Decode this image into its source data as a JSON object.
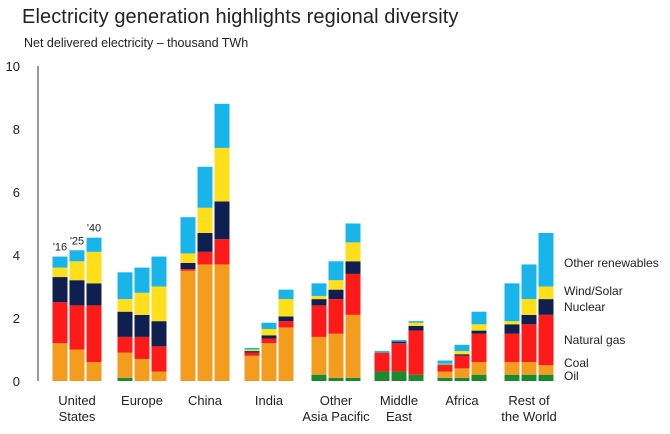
{
  "chart_data": {
    "type": "bar",
    "title": "Electricity generation highlights regional diversity",
    "subtitle": "Net delivered electricity – thousand TWh",
    "ylim": [
      0,
      10
    ],
    "yticks": [
      0,
      2,
      4,
      6,
      8,
      10
    ],
    "grid": false,
    "legend_placement": "right",
    "bar_year_labels": [
      "'16",
      "'25",
      "'40"
    ],
    "groups": [
      {
        "label": [
          "United",
          "States"
        ],
        "bars": [
          {
            "year": "2016",
            "values": {
              "Oil": 0.0,
              "Coal": 1.2,
              "Natural gas": 1.3,
              "Nuclear": 0.8,
              "Wind/Solar": 0.3,
              "Other renewables": 0.35
            }
          },
          {
            "year": "2025",
            "values": {
              "Oil": 0.0,
              "Coal": 1.0,
              "Natural gas": 1.4,
              "Nuclear": 0.8,
              "Wind/Solar": 0.6,
              "Other renewables": 0.35
            }
          },
          {
            "year": "2040",
            "values": {
              "Oil": 0.0,
              "Coal": 0.6,
              "Natural gas": 1.8,
              "Nuclear": 0.7,
              "Wind/Solar": 1.0,
              "Other renewables": 0.45
            }
          }
        ]
      },
      {
        "label": [
          "Europe"
        ],
        "bars": [
          {
            "year": "2016",
            "values": {
              "Oil": 0.1,
              "Coal": 0.8,
              "Natural gas": 0.5,
              "Nuclear": 0.8,
              "Wind/Solar": 0.4,
              "Other renewables": 0.85
            }
          },
          {
            "year": "2025",
            "values": {
              "Oil": 0.0,
              "Coal": 0.7,
              "Natural gas": 0.7,
              "Nuclear": 0.7,
              "Wind/Solar": 0.7,
              "Other renewables": 0.8
            }
          },
          {
            "year": "2040",
            "values": {
              "Oil": 0.0,
              "Coal": 0.3,
              "Natural gas": 0.8,
              "Nuclear": 0.8,
              "Wind/Solar": 1.1,
              "Other renewables": 0.95
            }
          }
        ]
      },
      {
        "label": [
          "China"
        ],
        "bars": [
          {
            "year": "2016",
            "values": {
              "Oil": 0.0,
              "Coal": 3.5,
              "Natural gas": 0.05,
              "Nuclear": 0.2,
              "Wind/Solar": 0.3,
              "Other renewables": 1.15
            }
          },
          {
            "year": "2025",
            "values": {
              "Oil": 0.0,
              "Coal": 3.7,
              "Natural gas": 0.4,
              "Nuclear": 0.6,
              "Wind/Solar": 0.8,
              "Other renewables": 1.3
            }
          },
          {
            "year": "2040",
            "values": {
              "Oil": 0.0,
              "Coal": 3.7,
              "Natural gas": 0.8,
              "Nuclear": 1.2,
              "Wind/Solar": 1.7,
              "Other renewables": 1.4
            }
          }
        ]
      },
      {
        "label": [
          "India"
        ],
        "bars": [
          {
            "year": "2016",
            "values": {
              "Oil": 0.0,
              "Coal": 0.8,
              "Natural gas": 0.1,
              "Nuclear": 0.05,
              "Wind/Solar": 0.05,
              "Other renewables": 0.05
            }
          },
          {
            "year": "2025",
            "values": {
              "Oil": 0.0,
              "Coal": 1.2,
              "Natural gas": 0.15,
              "Nuclear": 0.1,
              "Wind/Solar": 0.2,
              "Other renewables": 0.2
            }
          },
          {
            "year": "2040",
            "values": {
              "Oil": 0.0,
              "Coal": 1.7,
              "Natural gas": 0.2,
              "Nuclear": 0.15,
              "Wind/Solar": 0.55,
              "Other renewables": 0.3
            }
          }
        ]
      },
      {
        "label": [
          "Other",
          "Asia Pacific"
        ],
        "bars": [
          {
            "year": "2016",
            "values": {
              "Oil": 0.2,
              "Coal": 1.2,
              "Natural gas": 1.0,
              "Nuclear": 0.2,
              "Wind/Solar": 0.1,
              "Other renewables": 0.4
            }
          },
          {
            "year": "2025",
            "values": {
              "Oil": 0.1,
              "Coal": 1.4,
              "Natural gas": 1.1,
              "Nuclear": 0.3,
              "Wind/Solar": 0.3,
              "Other renewables": 0.6
            }
          },
          {
            "year": "2040",
            "values": {
              "Oil": 0.1,
              "Coal": 2.0,
              "Natural gas": 1.3,
              "Nuclear": 0.4,
              "Wind/Solar": 0.6,
              "Other renewables": 0.6
            }
          }
        ]
      },
      {
        "label": [
          "Middle",
          "East"
        ],
        "bars": [
          {
            "year": "2016",
            "values": {
              "Oil": 0.3,
              "Coal": 0.0,
              "Natural gas": 0.6,
              "Nuclear": 0.0,
              "Wind/Solar": 0.0,
              "Other renewables": 0.05
            }
          },
          {
            "year": "2025",
            "values": {
              "Oil": 0.3,
              "Coal": 0.0,
              "Natural gas": 0.9,
              "Nuclear": 0.05,
              "Wind/Solar": 0.0,
              "Other renewables": 0.05
            }
          },
          {
            "year": "2040",
            "values": {
              "Oil": 0.2,
              "Coal": 0.0,
              "Natural gas": 1.4,
              "Nuclear": 0.15,
              "Wind/Solar": 0.1,
              "Other renewables": 0.05
            }
          }
        ]
      },
      {
        "label": [
          "Africa"
        ],
        "bars": [
          {
            "year": "2016",
            "values": {
              "Oil": 0.1,
              "Coal": 0.2,
              "Natural gas": 0.2,
              "Nuclear": 0.02,
              "Wind/Solar": 0.03,
              "Other renewables": 0.1
            }
          },
          {
            "year": "2025",
            "values": {
              "Oil": 0.1,
              "Coal": 0.3,
              "Natural gas": 0.4,
              "Nuclear": 0.05,
              "Wind/Solar": 0.1,
              "Other renewables": 0.2
            }
          },
          {
            "year": "2040",
            "values": {
              "Oil": 0.2,
              "Coal": 0.4,
              "Natural gas": 0.9,
              "Nuclear": 0.1,
              "Wind/Solar": 0.2,
              "Other renewables": 0.4
            }
          }
        ]
      },
      {
        "label": [
          "Rest of",
          "the World"
        ],
        "bars": [
          {
            "year": "2016",
            "values": {
              "Oil": 0.2,
              "Coal": 0.4,
              "Natural gas": 0.9,
              "Nuclear": 0.3,
              "Wind/Solar": 0.1,
              "Other renewables": 1.2
            }
          },
          {
            "year": "2025",
            "values": {
              "Oil": 0.2,
              "Coal": 0.4,
              "Natural gas": 1.2,
              "Nuclear": 0.3,
              "Wind/Solar": 0.5,
              "Other renewables": 1.1
            }
          },
          {
            "year": "2040",
            "values": {
              "Oil": 0.2,
              "Coal": 0.3,
              "Natural gas": 1.6,
              "Nuclear": 0.5,
              "Wind/Solar": 0.4,
              "Other renewables": 1.7
            }
          }
        ]
      }
    ],
    "series": [
      {
        "name": "Oil",
        "color": "#1b8a2e"
      },
      {
        "name": "Coal",
        "color": "#f39c1e"
      },
      {
        "name": "Natural gas",
        "color": "#ff1a1a"
      },
      {
        "name": "Nuclear",
        "color": "#0f2050"
      },
      {
        "name": "Wind/Solar",
        "color": "#ffdf1a"
      },
      {
        "name": "Other renewables",
        "color": "#19b4ea"
      }
    ]
  }
}
